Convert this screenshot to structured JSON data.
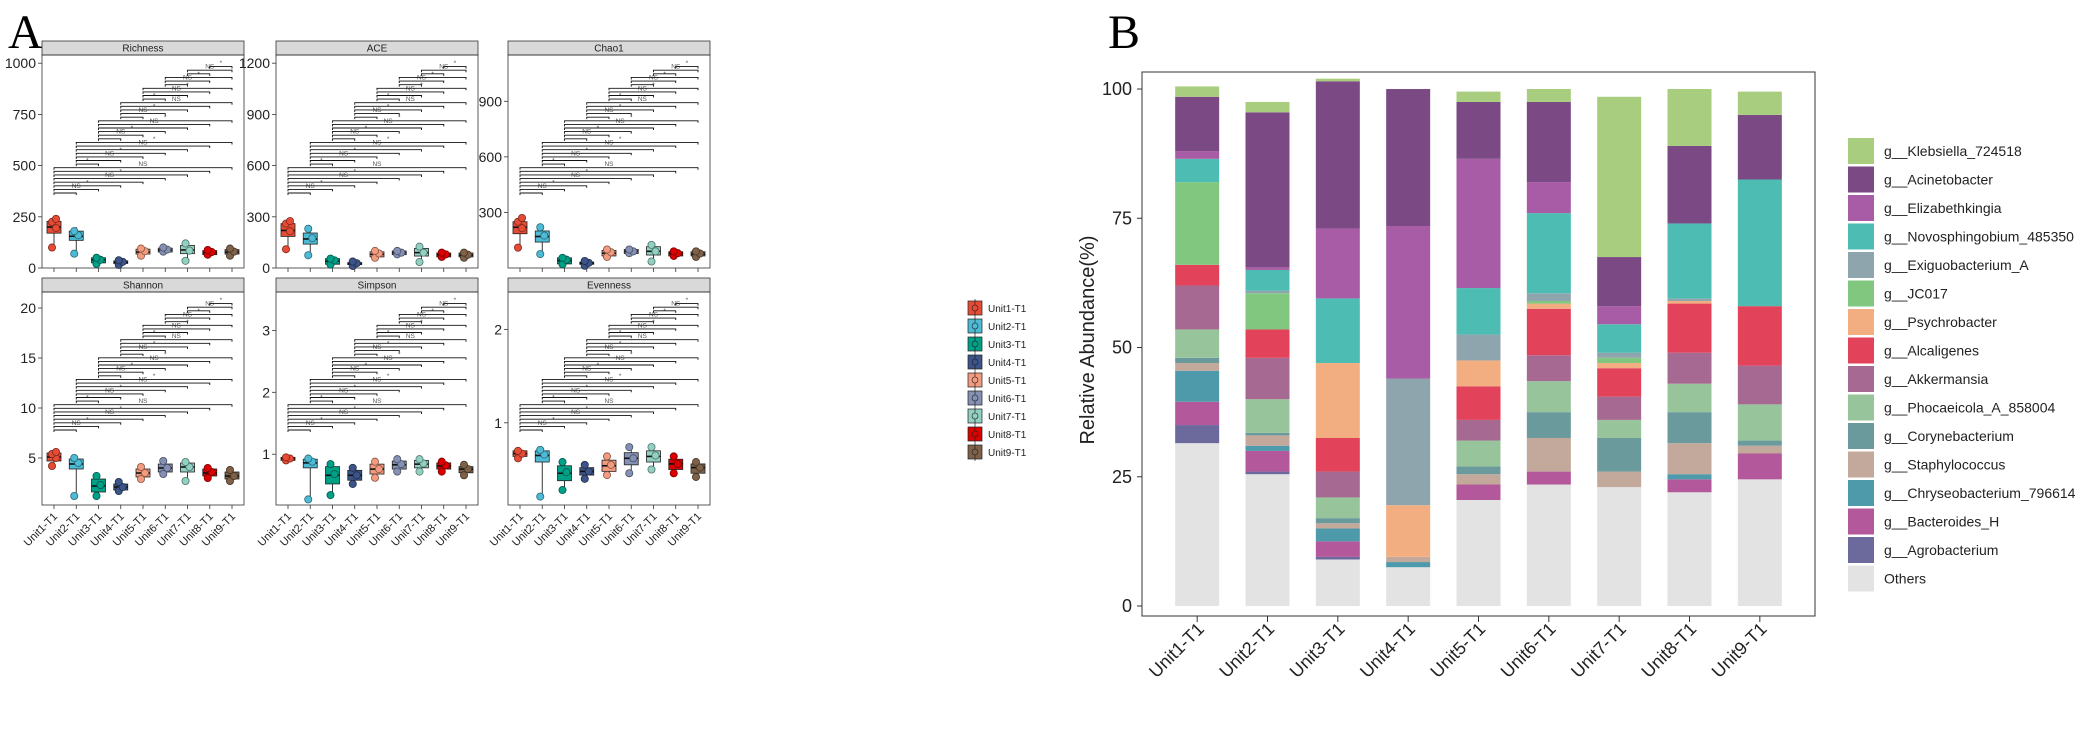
{
  "panel_labels": {
    "a": "A",
    "b": "B"
  },
  "legend_a": {
    "entries": [
      "Unit1-T1",
      "Unit2-T1",
      "Unit3-T1",
      "Unit4-T1",
      "Unit5-T1",
      "Unit6-T1",
      "Unit7-T1",
      "Unit8-T1",
      "Unit9-T1"
    ],
    "colors": [
      "#E64B35",
      "#4DBBD5",
      "#00A087",
      "#3C5488",
      "#F39B7F",
      "#8491B4",
      "#91D1C2",
      "#DC0000",
      "#7E6148"
    ]
  },
  "chart_data": [
    {
      "type": "box",
      "title": "Richness",
      "categories": [
        "Unit1-T1",
        "Unit2-T1",
        "Unit3-T1",
        "Unit4-T1",
        "Unit5-T1",
        "Unit6-T1",
        "Unit7-T1",
        "Unit8-T1",
        "Unit9-T1"
      ],
      "ylim": [
        0,
        1040
      ],
      "yticks": [
        0,
        250,
        500,
        750,
        1000
      ],
      "boxes": [
        {
          "q1": 170,
          "med": 200,
          "q3": 228,
          "lo": 100,
          "hi": 245,
          "pts": [
            100,
            195,
            225,
            240
          ]
        },
        {
          "q1": 135,
          "med": 155,
          "q3": 180,
          "lo": 70,
          "hi": 200,
          "pts": [
            70,
            160,
            180
          ]
        },
        {
          "q1": 25,
          "med": 40,
          "q3": 50,
          "lo": 15,
          "hi": 55,
          "pts": [
            20,
            40,
            50
          ]
        },
        {
          "q1": 22,
          "med": 28,
          "q3": 35,
          "lo": 12,
          "hi": 40,
          "pts": [
            15,
            30,
            38
          ]
        },
        {
          "q1": 68,
          "med": 78,
          "q3": 92,
          "lo": 55,
          "hi": 100,
          "pts": [
            60,
            82,
            95
          ]
        },
        {
          "q1": 78,
          "med": 88,
          "q3": 97,
          "lo": 72,
          "hi": 102,
          "pts": [
            80,
            90,
            100
          ]
        },
        {
          "q1": 70,
          "med": 88,
          "q3": 110,
          "lo": 30,
          "hi": 125,
          "pts": [
            35,
            85,
            120
          ]
        },
        {
          "q1": 65,
          "med": 75,
          "q3": 85,
          "lo": 58,
          "hi": 92,
          "pts": [
            65,
            78,
            88
          ]
        },
        {
          "q1": 68,
          "med": 78,
          "q3": 90,
          "lo": 55,
          "hi": 98,
          "pts": [
            60,
            80,
            95
          ]
        }
      ]
    },
    {
      "type": "box",
      "title": "ACE",
      "categories": [
        "Unit1-T1",
        "Unit2-T1",
        "Unit3-T1",
        "Unit4-T1",
        "Unit5-T1",
        "Unit6-T1",
        "Unit7-T1",
        "Unit8-T1",
        "Unit9-T1"
      ],
      "ylim": [
        0,
        1248
      ],
      "yticks": [
        0,
        300,
        600,
        900,
        1200
      ],
      "boxes": [
        {
          "q1": 185,
          "med": 220,
          "q3": 260,
          "lo": 110,
          "hi": 275,
          "pts": [
            110,
            215,
            260,
            275
          ]
        },
        {
          "q1": 140,
          "med": 170,
          "q3": 205,
          "lo": 70,
          "hi": 235,
          "pts": [
            75,
            175,
            230
          ]
        },
        {
          "q1": 22,
          "med": 40,
          "q3": 55,
          "lo": 15,
          "hi": 60,
          "pts": [
            20,
            45,
            55
          ]
        },
        {
          "q1": 20,
          "med": 25,
          "q3": 32,
          "lo": 10,
          "hi": 40,
          "pts": [
            12,
            28,
            38
          ]
        },
        {
          "q1": 65,
          "med": 80,
          "q3": 95,
          "lo": 55,
          "hi": 105,
          "pts": [
            60,
            85,
            100
          ]
        },
        {
          "q1": 78,
          "med": 90,
          "q3": 100,
          "lo": 72,
          "hi": 105,
          "pts": [
            80,
            90,
            100
          ]
        },
        {
          "q1": 70,
          "med": 90,
          "q3": 115,
          "lo": 30,
          "hi": 130,
          "pts": [
            35,
            90,
            125
          ]
        },
        {
          "q1": 65,
          "med": 78,
          "q3": 88,
          "lo": 55,
          "hi": 95,
          "pts": [
            65,
            80,
            90
          ]
        },
        {
          "q1": 65,
          "med": 75,
          "q3": 88,
          "lo": 55,
          "hi": 95,
          "pts": [
            60,
            78,
            90
          ]
        }
      ]
    },
    {
      "type": "box",
      "title": "Chao1",
      "categories": [
        "Unit1-T1",
        "Unit2-T1",
        "Unit3-T1",
        "Unit4-T1",
        "Unit5-T1",
        "Unit6-T1",
        "Unit7-T1",
        "Unit8-T1",
        "Unit9-T1"
      ],
      "ylim": [
        0,
        1150
      ],
      "yticks": [
        300,
        600,
        900
      ],
      "boxes": [
        {
          "q1": 185,
          "med": 220,
          "q3": 250,
          "lo": 110,
          "hi": 275,
          "pts": [
            110,
            215,
            250,
            270
          ]
        },
        {
          "q1": 140,
          "med": 170,
          "q3": 200,
          "lo": 70,
          "hi": 225,
          "pts": [
            75,
            175,
            220
          ]
        },
        {
          "q1": 22,
          "med": 40,
          "q3": 55,
          "lo": 15,
          "hi": 60,
          "pts": [
            20,
            45,
            55
          ]
        },
        {
          "q1": 20,
          "med": 25,
          "q3": 32,
          "lo": 10,
          "hi": 40,
          "pts": [
            12,
            28,
            38
          ]
        },
        {
          "q1": 65,
          "med": 80,
          "q3": 95,
          "lo": 55,
          "hi": 105,
          "pts": [
            60,
            85,
            100
          ]
        },
        {
          "q1": 78,
          "med": 90,
          "q3": 100,
          "lo": 72,
          "hi": 105,
          "pts": [
            80,
            90,
            100
          ]
        },
        {
          "q1": 70,
          "med": 90,
          "q3": 115,
          "lo": 30,
          "hi": 130,
          "pts": [
            35,
            90,
            125
          ]
        },
        {
          "q1": 65,
          "med": 78,
          "q3": 88,
          "lo": 55,
          "hi": 95,
          "pts": [
            65,
            80,
            90
          ]
        },
        {
          "q1": 65,
          "med": 75,
          "q3": 88,
          "lo": 55,
          "hi": 95,
          "pts": [
            60,
            78,
            90
          ]
        }
      ]
    },
    {
      "type": "box",
      "title": "Shannon",
      "categories": [
        "Unit1-T1",
        "Unit2-T1",
        "Unit3-T1",
        "Unit4-T1",
        "Unit5-T1",
        "Unit6-T1",
        "Unit7-T1",
        "Unit8-T1",
        "Unit9-T1"
      ],
      "ylim": [
        0.3,
        21.6
      ],
      "yticks": [
        5,
        10,
        15,
        20
      ],
      "boxes": [
        {
          "q1": 4.7,
          "med": 5.1,
          "q3": 5.5,
          "lo": 4.1,
          "hi": 5.7,
          "pts": [
            4.2,
            5.0,
            5.4,
            5.6
          ]
        },
        {
          "q1": 3.9,
          "med": 4.4,
          "q3": 4.9,
          "lo": 1.1,
          "hi": 5.1,
          "pts": [
            1.2,
            4.5,
            5.0
          ]
        },
        {
          "q1": 1.6,
          "med": 2.2,
          "q3": 2.9,
          "lo": 1.1,
          "hi": 3.3,
          "pts": [
            1.2,
            2.3,
            3.2
          ]
        },
        {
          "q1": 1.8,
          "med": 2.1,
          "q3": 2.4,
          "lo": 1.5,
          "hi": 2.7,
          "pts": [
            1.7,
            2.1,
            2.6
          ]
        },
        {
          "q1": 3.1,
          "med": 3.5,
          "q3": 3.9,
          "lo": 2.7,
          "hi": 4.2,
          "pts": [
            2.9,
            3.5,
            4.1
          ]
        },
        {
          "q1": 3.6,
          "med": 4.0,
          "q3": 4.4,
          "lo": 3.3,
          "hi": 4.8,
          "pts": [
            3.4,
            4.0,
            4.7
          ]
        },
        {
          "q1": 3.6,
          "med": 4.1,
          "q3": 4.5,
          "lo": 2.6,
          "hi": 4.8,
          "pts": [
            2.7,
            4.1,
            4.6
          ]
        },
        {
          "q1": 3.2,
          "med": 3.5,
          "q3": 3.9,
          "lo": 2.9,
          "hi": 4.2,
          "pts": [
            3.0,
            3.6,
            4.0
          ]
        },
        {
          "q1": 2.9,
          "med": 3.2,
          "q3": 3.6,
          "lo": 2.6,
          "hi": 3.9,
          "pts": [
            2.7,
            3.2,
            3.8
          ]
        }
      ]
    },
    {
      "type": "box",
      "title": "Simpson",
      "categories": [
        "Unit1-T1",
        "Unit2-T1",
        "Unit3-T1",
        "Unit4-T1",
        "Unit5-T1",
        "Unit6-T1",
        "Unit7-T1",
        "Unit8-T1",
        "Unit9-T1"
      ],
      "ylim": [
        0.18,
        3.62
      ],
      "yticks": [
        1,
        2,
        3
      ],
      "boxes": [
        {
          "q1": 0.9,
          "med": 0.93,
          "q3": 0.95,
          "lo": 0.88,
          "hi": 0.96,
          "pts": [
            0.9,
            0.93,
            0.95
          ]
        },
        {
          "q1": 0.78,
          "med": 0.86,
          "q3": 0.92,
          "lo": 0.26,
          "hi": 0.95,
          "pts": [
            0.27,
            0.88,
            0.93
          ]
        },
        {
          "q1": 0.52,
          "med": 0.66,
          "q3": 0.8,
          "lo": 0.32,
          "hi": 0.86,
          "pts": [
            0.34,
            0.68,
            0.84
          ]
        },
        {
          "q1": 0.58,
          "med": 0.66,
          "q3": 0.74,
          "lo": 0.5,
          "hi": 0.8,
          "pts": [
            0.52,
            0.66,
            0.78
          ]
        },
        {
          "q1": 0.68,
          "med": 0.76,
          "q3": 0.84,
          "lo": 0.6,
          "hi": 0.9,
          "pts": [
            0.62,
            0.76,
            0.88
          ]
        },
        {
          "q1": 0.76,
          "med": 0.83,
          "q3": 0.89,
          "lo": 0.7,
          "hi": 0.94,
          "pts": [
            0.72,
            0.84,
            0.92
          ]
        },
        {
          "q1": 0.78,
          "med": 0.84,
          "q3": 0.9,
          "lo": 0.7,
          "hi": 0.94,
          "pts": [
            0.72,
            0.85,
            0.92
          ]
        },
        {
          "q1": 0.76,
          "med": 0.81,
          "q3": 0.86,
          "lo": 0.7,
          "hi": 0.9,
          "pts": [
            0.72,
            0.82,
            0.88
          ]
        },
        {
          "q1": 0.7,
          "med": 0.76,
          "q3": 0.8,
          "lo": 0.64,
          "hi": 0.85,
          "pts": [
            0.66,
            0.76,
            0.83
          ]
        }
      ]
    },
    {
      "type": "box",
      "title": "Evenness",
      "categories": [
        "Unit1-T1",
        "Unit2-T1",
        "Unit3-T1",
        "Unit4-T1",
        "Unit5-T1",
        "Unit6-T1",
        "Unit7-T1",
        "Unit8-T1",
        "Unit9-T1"
      ],
      "ylim": [
        0.12,
        2.4
      ],
      "yticks": [
        1,
        2
      ],
      "boxes": [
        {
          "q1": 0.64,
          "med": 0.67,
          "q3": 0.7,
          "lo": 0.6,
          "hi": 0.72,
          "pts": [
            0.62,
            0.67,
            0.7
          ]
        },
        {
          "q1": 0.58,
          "med": 0.65,
          "q3": 0.7,
          "lo": 0.2,
          "hi": 0.72,
          "pts": [
            0.21,
            0.66,
            0.71
          ]
        },
        {
          "q1": 0.38,
          "med": 0.46,
          "q3": 0.54,
          "lo": 0.26,
          "hi": 0.6,
          "pts": [
            0.28,
            0.47,
            0.58
          ]
        },
        {
          "q1": 0.44,
          "med": 0.48,
          "q3": 0.52,
          "lo": 0.38,
          "hi": 0.56,
          "pts": [
            0.4,
            0.48,
            0.55
          ]
        },
        {
          "q1": 0.48,
          "med": 0.54,
          "q3": 0.6,
          "lo": 0.42,
          "hi": 0.66,
          "pts": [
            0.44,
            0.55,
            0.64
          ]
        },
        {
          "q1": 0.55,
          "med": 0.62,
          "q3": 0.68,
          "lo": 0.44,
          "hi": 0.76,
          "pts": [
            0.46,
            0.62,
            0.74
          ]
        },
        {
          "q1": 0.58,
          "med": 0.64,
          "q3": 0.7,
          "lo": 0.48,
          "hi": 0.76,
          "pts": [
            0.5,
            0.65,
            0.74
          ]
        },
        {
          "q1": 0.5,
          "med": 0.56,
          "q3": 0.61,
          "lo": 0.44,
          "hi": 0.66,
          "pts": [
            0.46,
            0.56,
            0.64
          ]
        },
        {
          "q1": 0.46,
          "med": 0.52,
          "q3": 0.56,
          "lo": 0.4,
          "hi": 0.6,
          "pts": [
            0.42,
            0.52,
            0.58
          ]
        }
      ]
    },
    {
      "type": "stacked-bar",
      "ylabel": "Relative Abundance(%)",
      "ylim": [
        0,
        100
      ],
      "yticks": [
        0,
        25,
        50,
        75,
        100
      ],
      "categories": [
        "Unit1-T1",
        "Unit2-T1",
        "Unit3-T1",
        "Unit4-T1",
        "Unit5-T1",
        "Unit6-T1",
        "Unit7-T1",
        "Unit8-T1",
        "Unit9-T1"
      ],
      "series": [
        {
          "name": "Others",
          "color": "#E3E3E3",
          "values": [
            31.5,
            25.5,
            9,
            7.5,
            20.5,
            23.5,
            23,
            22,
            24.5
          ]
        },
        {
          "name": "g__Agrobacterium",
          "color": "#6C6A9D",
          "values": [
            3.5,
            0.5,
            0.5,
            0,
            0,
            0,
            0,
            0,
            0
          ]
        },
        {
          "name": "g__Bacteroides_H",
          "color": "#B3589A",
          "values": [
            4.5,
            4,
            3,
            0,
            3,
            2.5,
            0,
            2.5,
            5
          ]
        },
        {
          "name": "g__Chryseobacterium_796614",
          "color": "#4E9AAA",
          "values": [
            6,
            1,
            2.5,
            1,
            0,
            0,
            0,
            1,
            0
          ]
        },
        {
          "name": "g__Staphylococcus",
          "color": "#C2A99B",
          "values": [
            1.5,
            2,
            1,
            1,
            2,
            6.5,
            3,
            6,
            1.5
          ]
        },
        {
          "name": "g__Corynebacterium",
          "color": "#6B9A9C",
          "values": [
            1,
            0.5,
            1,
            0,
            1.5,
            5,
            6.5,
            6,
            1
          ]
        },
        {
          "name": "g__Phocaeicola_A_858004",
          "color": "#98C49B",
          "values": [
            5.5,
            6.5,
            4,
            0,
            5,
            6,
            3.5,
            5.5,
            7
          ]
        },
        {
          "name": "g__Akkermansia",
          "color": "#A66A92",
          "values": [
            8.5,
            8,
            5,
            0,
            4,
            5,
            4.5,
            6,
            7.5
          ]
        },
        {
          "name": "g__Alcaligenes",
          "color": "#E2435A",
          "values": [
            4,
            5.5,
            6.5,
            0,
            6.5,
            9,
            5.5,
            9.5,
            11.5
          ]
        },
        {
          "name": "g__Psychrobacter",
          "color": "#F2AE81",
          "values": [
            0,
            0,
            14.5,
            10,
            5,
            1,
            1,
            0.5,
            0
          ]
        },
        {
          "name": "g__JC017",
          "color": "#82C77F",
          "values": [
            16,
            7,
            0,
            0,
            0,
            0.5,
            1,
            0,
            0
          ]
        },
        {
          "name": "g__Exiguobacterium_A",
          "color": "#8FA5AD",
          "values": [
            0,
            0.5,
            0,
            24.5,
            5,
            1.5,
            1,
            0.5,
            0
          ]
        },
        {
          "name": "g__Novosphingobium_485350",
          "color": "#4DBCB3",
          "values": [
            4.5,
            4,
            12.5,
            0,
            9,
            15.5,
            5.5,
            14.5,
            24.5
          ]
        },
        {
          "name": "g__Elizabethkingia",
          "color": "#A95CA6",
          "values": [
            1.5,
            0.5,
            13.5,
            29.5,
            25,
            6,
            3.5,
            0,
            0
          ]
        },
        {
          "name": "g__Acinetobacter",
          "color": "#7B4A85",
          "values": [
            10.5,
            30,
            28.5,
            26.5,
            11,
            15.5,
            9.5,
            15,
            12.5
          ]
        },
        {
          "name": "g__Klebsiella_724518",
          "color": "#A8CD7E",
          "values": [
            2,
            2,
            0.5,
            0,
            2,
            2.5,
            31,
            11,
            4.5
          ]
        }
      ]
    }
  ]
}
